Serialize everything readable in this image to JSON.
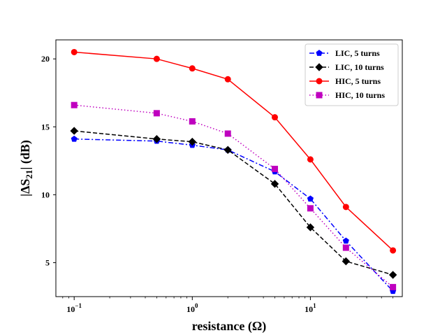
{
  "chart_data": {
    "type": "line",
    "title": "",
    "xlabel": "resistance (Ω)",
    "ylabel_parts": {
      "prefix": "|ΔS",
      "subscript": "21",
      "suffix": "| (dB)"
    },
    "xscale": "log",
    "xlim": [
      0.07,
      60
    ],
    "ylim": [
      2.5,
      21.4
    ],
    "x_ticks": [
      {
        "value": 0.1,
        "base": "10",
        "exp": "−1"
      },
      {
        "value": 1,
        "base": "10",
        "exp": "0"
      },
      {
        "value": 10,
        "base": "10",
        "exp": "1"
      }
    ],
    "y_ticks": [
      {
        "value": 5,
        "label": "5"
      },
      {
        "value": 10,
        "label": "10"
      },
      {
        "value": 15,
        "label": "15"
      },
      {
        "value": 20,
        "label": "20"
      }
    ],
    "legend_position": "top-right",
    "grid": false,
    "x": [
      0.1,
      0.5,
      1,
      2,
      5,
      10,
      20,
      50
    ],
    "series": [
      {
        "name": "LIC, 5 turns",
        "color": "#0000ff",
        "dash": "dashdot",
        "marker": "pentagon",
        "values": [
          14.1,
          13.95,
          13.65,
          13.3,
          11.7,
          9.7,
          6.6,
          2.9
        ]
      },
      {
        "name": "LIC, 10 turns",
        "color": "#000000",
        "dash": "dashed",
        "marker": "diamond",
        "values": [
          14.7,
          14.1,
          13.9,
          13.3,
          10.8,
          7.6,
          5.1,
          4.1
        ]
      },
      {
        "name": "HIC, 5 turns",
        "color": "#ff0000",
        "dash": "solid",
        "marker": "circle",
        "values": [
          20.5,
          20.0,
          19.3,
          18.5,
          15.7,
          12.6,
          9.1,
          5.9
        ]
      },
      {
        "name": "HIC, 10 turns",
        "color": "#bf00bf",
        "dash": "dotted",
        "marker": "square",
        "values": [
          16.6,
          16.0,
          15.4,
          14.5,
          11.9,
          9.0,
          6.1,
          3.2
        ]
      }
    ]
  }
}
